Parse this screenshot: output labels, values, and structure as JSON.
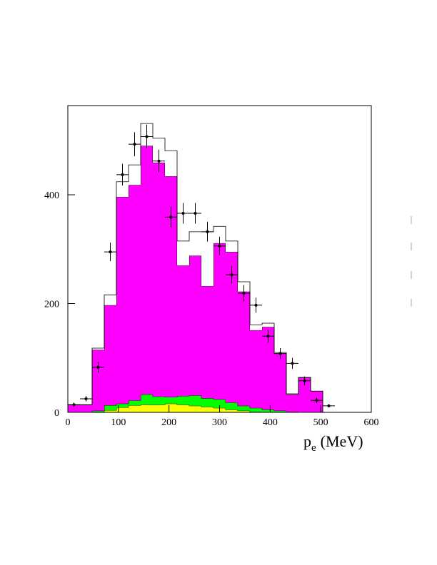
{
  "chart_data": {
    "type": "histogram",
    "xlabel": "p",
    "xlabel_sub": "e",
    "xlabel_unit": "(MeV)",
    "bins": [
      0,
      24,
      48,
      72,
      96,
      120,
      144,
      168,
      192,
      216,
      240,
      264,
      288,
      312,
      336,
      360,
      384,
      408,
      432,
      456,
      480,
      504,
      528
    ],
    "series": [
      {
        "color": "#ffff00",
        "values": [
          0,
          0,
          1,
          4,
          9,
          13,
          14,
          14,
          16,
          14,
          12,
          10,
          8,
          5,
          3,
          1,
          0,
          0,
          0,
          0,
          0,
          0
        ]
      },
      {
        "color": "#00ff00",
        "values": [
          0,
          0,
          2,
          9,
          7,
          9,
          19,
          15,
          12,
          16,
          19,
          16,
          16,
          13,
          9,
          7,
          5,
          3,
          1,
          0,
          0,
          0
        ]
      },
      {
        "color": "#ff00ff",
        "values": [
          14,
          14,
          112,
          184,
          380,
          396,
          457,
          430,
          406,
          240,
          257,
          206,
          287,
          277,
          210,
          143,
          152,
          105,
          32,
          64,
          39,
          0
        ]
      },
      {
        "color": "#ffffff",
        "values": [
          0,
          0,
          3,
          19,
          28,
          37,
          41,
          45,
          47,
          45,
          44,
          100,
          31,
          20,
          18,
          10,
          7,
          2,
          1,
          0,
          0,
          0
        ]
      }
    ],
    "points": {
      "x": [
        12,
        36,
        60,
        84,
        108,
        132,
        156,
        180,
        204,
        228,
        252,
        276,
        300,
        324,
        348,
        372,
        396,
        420,
        444,
        468,
        492,
        516
      ],
      "values": [
        14,
        25,
        83,
        295,
        437,
        493,
        507,
        462,
        359,
        366,
        366,
        332,
        306,
        253,
        219,
        197,
        140,
        108,
        90,
        58,
        22,
        12
      ],
      "errors": [
        4,
        5,
        10,
        17,
        20,
        22,
        22,
        21,
        19,
        19,
        19,
        18,
        17,
        16,
        15,
        14,
        12,
        10,
        10,
        8,
        5,
        3
      ]
    },
    "xlim": [
      0,
      600
    ],
    "xticks": [
      0,
      100,
      200,
      300,
      400,
      500,
      600
    ],
    "ylim": [
      0,
      564
    ],
    "yticks": [
      0,
      200,
      400
    ]
  }
}
